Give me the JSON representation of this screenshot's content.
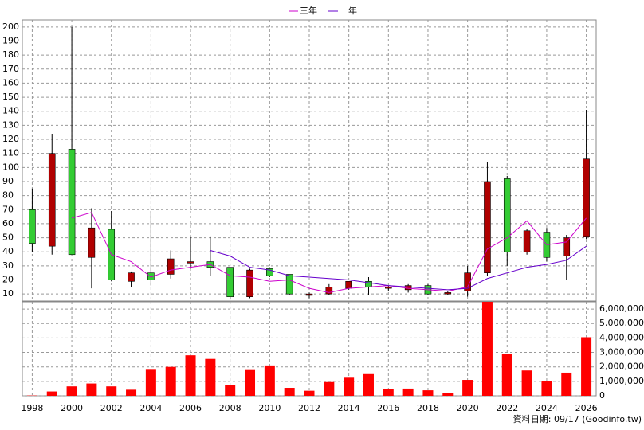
{
  "chart_data": [
    {
      "type": "candlestick",
      "x": [
        1998,
        1999,
        2000,
        2001,
        2002,
        2003,
        2004,
        2005,
        2006,
        2007,
        2008,
        2009,
        2010,
        2011,
        2012,
        2013,
        2014,
        2015,
        2016,
        2017,
        2018,
        2019,
        2020,
        2021,
        2022,
        2023,
        2024,
        2025,
        2026
      ],
      "open": [
        70,
        44,
        113,
        36,
        56,
        19,
        25,
        24,
        32,
        33,
        29,
        8,
        28,
        24,
        9,
        10,
        14,
        19,
        14,
        13,
        16,
        10,
        12,
        25,
        92,
        40,
        54,
        37,
        51
      ],
      "high": [
        85,
        124,
        200,
        71,
        69,
        26,
        69,
        41,
        51,
        51,
        29,
        28,
        29,
        24,
        11,
        17,
        19,
        22,
        16,
        17,
        17,
        12,
        30,
        104,
        94,
        56,
        57,
        52,
        141
      ],
      "low": [
        40,
        38,
        38,
        14,
        19,
        15,
        16,
        21,
        28,
        23,
        6,
        7,
        22,
        9,
        7,
        9,
        13,
        9,
        12,
        11,
        9,
        9,
        8,
        23,
        30,
        38,
        33,
        20,
        49
      ],
      "close": [
        46,
        110,
        38,
        57,
        20,
        25,
        20,
        35,
        33,
        29,
        8,
        27,
        23,
        10,
        10,
        15,
        19,
        15,
        15,
        16,
        10,
        11,
        25,
        90,
        40,
        55,
        36,
        50,
        106
      ],
      "up_color": "#b00000",
      "down_color": "#33cc33",
      "series": [
        {
          "name": "三年",
          "color": "#cc00cc",
          "values": [
            null,
            null,
            64,
            68,
            38,
            33,
            22,
            27,
            29,
            31,
            23,
            22,
            19,
            20,
            14,
            11,
            14,
            15,
            16,
            14,
            13,
            12,
            15,
            42,
            50,
            62,
            45,
            47,
            64
          ]
        },
        {
          "name": "十年",
          "color": "#6600cc",
          "values": [
            null,
            null,
            null,
            null,
            null,
            null,
            null,
            null,
            null,
            41,
            37,
            29,
            27,
            23,
            22,
            21,
            20,
            18,
            16,
            15,
            14,
            13,
            14,
            21,
            25,
            29,
            31,
            34,
            44
          ]
        }
      ],
      "xlim": [
        1997.5,
        2026.5
      ],
      "ylim": [
        5,
        205
      ],
      "yticks": [
        10,
        20,
        30,
        40,
        50,
        60,
        70,
        80,
        90,
        100,
        110,
        120,
        130,
        140,
        150,
        160,
        170,
        180,
        190,
        200
      ],
      "grid": true,
      "legend": "top"
    },
    {
      "type": "bar",
      "x": [
        1998,
        1999,
        2000,
        2001,
        2002,
        2003,
        2004,
        2005,
        2006,
        2007,
        2008,
        2009,
        2010,
        2011,
        2012,
        2013,
        2014,
        2015,
        2016,
        2017,
        2018,
        2019,
        2020,
        2021,
        2022,
        2023,
        2024,
        2025,
        2026
      ],
      "values": [
        20000,
        300000,
        650000,
        850000,
        650000,
        420000,
        1800000,
        2000000,
        2800000,
        2550000,
        720000,
        1780000,
        2100000,
        550000,
        350000,
        950000,
        1250000,
        1500000,
        450000,
        500000,
        380000,
        200000,
        1100000,
        6500000,
        2900000,
        1750000,
        1000000,
        1600000,
        4050000
      ],
      "color": "#ff0000",
      "xlim": [
        1997.5,
        2026.5
      ],
      "ylim": [
        0,
        6500000
      ],
      "xticks": [
        1998,
        2000,
        2002,
        2004,
        2006,
        2008,
        2010,
        2012,
        2014,
        2016,
        2018,
        2020,
        2022,
        2024,
        2026
      ],
      "yticks": [
        0,
        {
          "value": 1000000,
          "label": "1,000,000"
        },
        {
          "value": 2000000,
          "label": "2,000,000"
        },
        {
          "value": 3000000,
          "label": "3,000,000"
        },
        {
          "value": 4000000,
          "label": "4,000,000"
        },
        {
          "value": 5000000,
          "label": "5,000,000"
        },
        {
          "value": 6000000,
          "label": "6,000,000"
        }
      ],
      "grid": true,
      "source": "資料日期: 09/17 (Goodinfo.tw)"
    }
  ]
}
